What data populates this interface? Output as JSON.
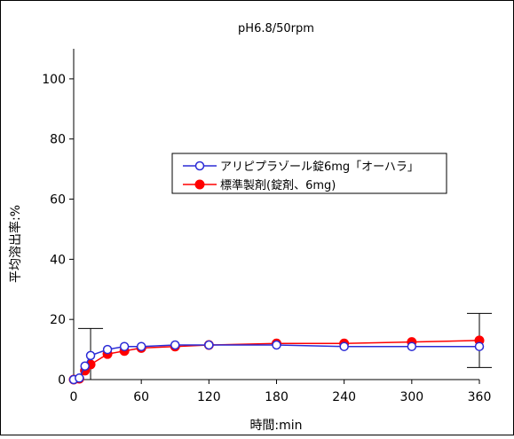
{
  "chart_data": {
    "type": "line",
    "title": "pH6.8/50rpm",
    "xlabel": "時間:min",
    "ylabel": "平均溶出率:%",
    "xlim": [
      0,
      360
    ],
    "ylim": [
      0,
      110
    ],
    "x_ticks": [
      "0",
      "60",
      "120",
      "180",
      "240",
      "300",
      "360"
    ],
    "y_ticks": [
      "0",
      "20",
      "40",
      "60",
      "80",
      "100"
    ],
    "grid": false,
    "legend_position": "center-right",
    "series": [
      {
        "name": "アリピプラゾール錠6mg「オーハラ」",
        "color": "#2b2bd6",
        "marker": "open-circle",
        "x": [
          0,
          5,
          10,
          15,
          30,
          45,
          60,
          90,
          120,
          180,
          240,
          300,
          360
        ],
        "y": [
          0,
          0.5,
          4.5,
          8,
          10,
          11,
          11,
          11.5,
          11.5,
          11.5,
          11,
          11,
          11
        ]
      },
      {
        "name": "標準製剤(錠剤、6mg)",
        "color": "#ff0000",
        "marker": "filled-circle",
        "x": [
          0,
          5,
          10,
          15,
          30,
          45,
          60,
          90,
          120,
          180,
          240,
          300,
          360
        ],
        "y": [
          0,
          0.3,
          3,
          5,
          8.5,
          9.5,
          10.5,
          11,
          11.5,
          12,
          12,
          12.5,
          13
        ],
        "error_bars": [
          {
            "x": 15,
            "low": 0,
            "high": 17
          },
          {
            "x": 360,
            "low": 4,
            "high": 22
          }
        ]
      }
    ]
  }
}
